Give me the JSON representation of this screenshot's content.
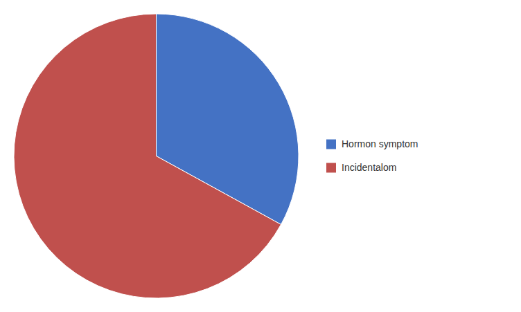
{
  "chart_data": {
    "type": "pie",
    "categories": [
      "Hormon symptom",
      "Incidentalom"
    ],
    "values": [
      33,
      67
    ],
    "colors": [
      "#4472C4",
      "#C0504D"
    ],
    "legend": "right"
  }
}
